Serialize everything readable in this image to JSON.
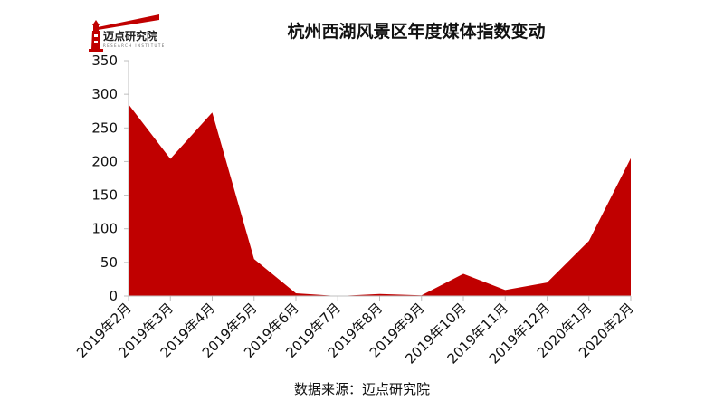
{
  "logo": {
    "name": "迈点研究院",
    "subtitle": "RESEARCH INSTITUTE",
    "icon": "lighthouse-icon",
    "accent": "#c00000"
  },
  "source_label": "数据来源：迈点研究院",
  "chart_data": {
    "type": "area",
    "title": "杭州西湖风景区年度媒体指数变动",
    "xlabel": "",
    "ylabel": "",
    "categories": [
      "2019年2月",
      "2019年3月",
      "2019年4月",
      "2019年5月",
      "2019年6月",
      "2019年7月",
      "2019年8月",
      "2019年9月",
      "2019年10月",
      "2019年11月",
      "2019年12月",
      "2020年1月",
      "2020年2月"
    ],
    "series": [
      {
        "values": [
          285,
          204,
          273,
          55,
          4,
          0,
          3,
          1,
          33,
          9,
          20,
          82,
          205
        ],
        "color": "#c00000"
      }
    ],
    "ylim": [
      0,
      350
    ],
    "yticks": [
      0,
      50,
      100,
      150,
      200,
      250,
      300,
      350
    ],
    "grid": false,
    "legend": "none"
  }
}
